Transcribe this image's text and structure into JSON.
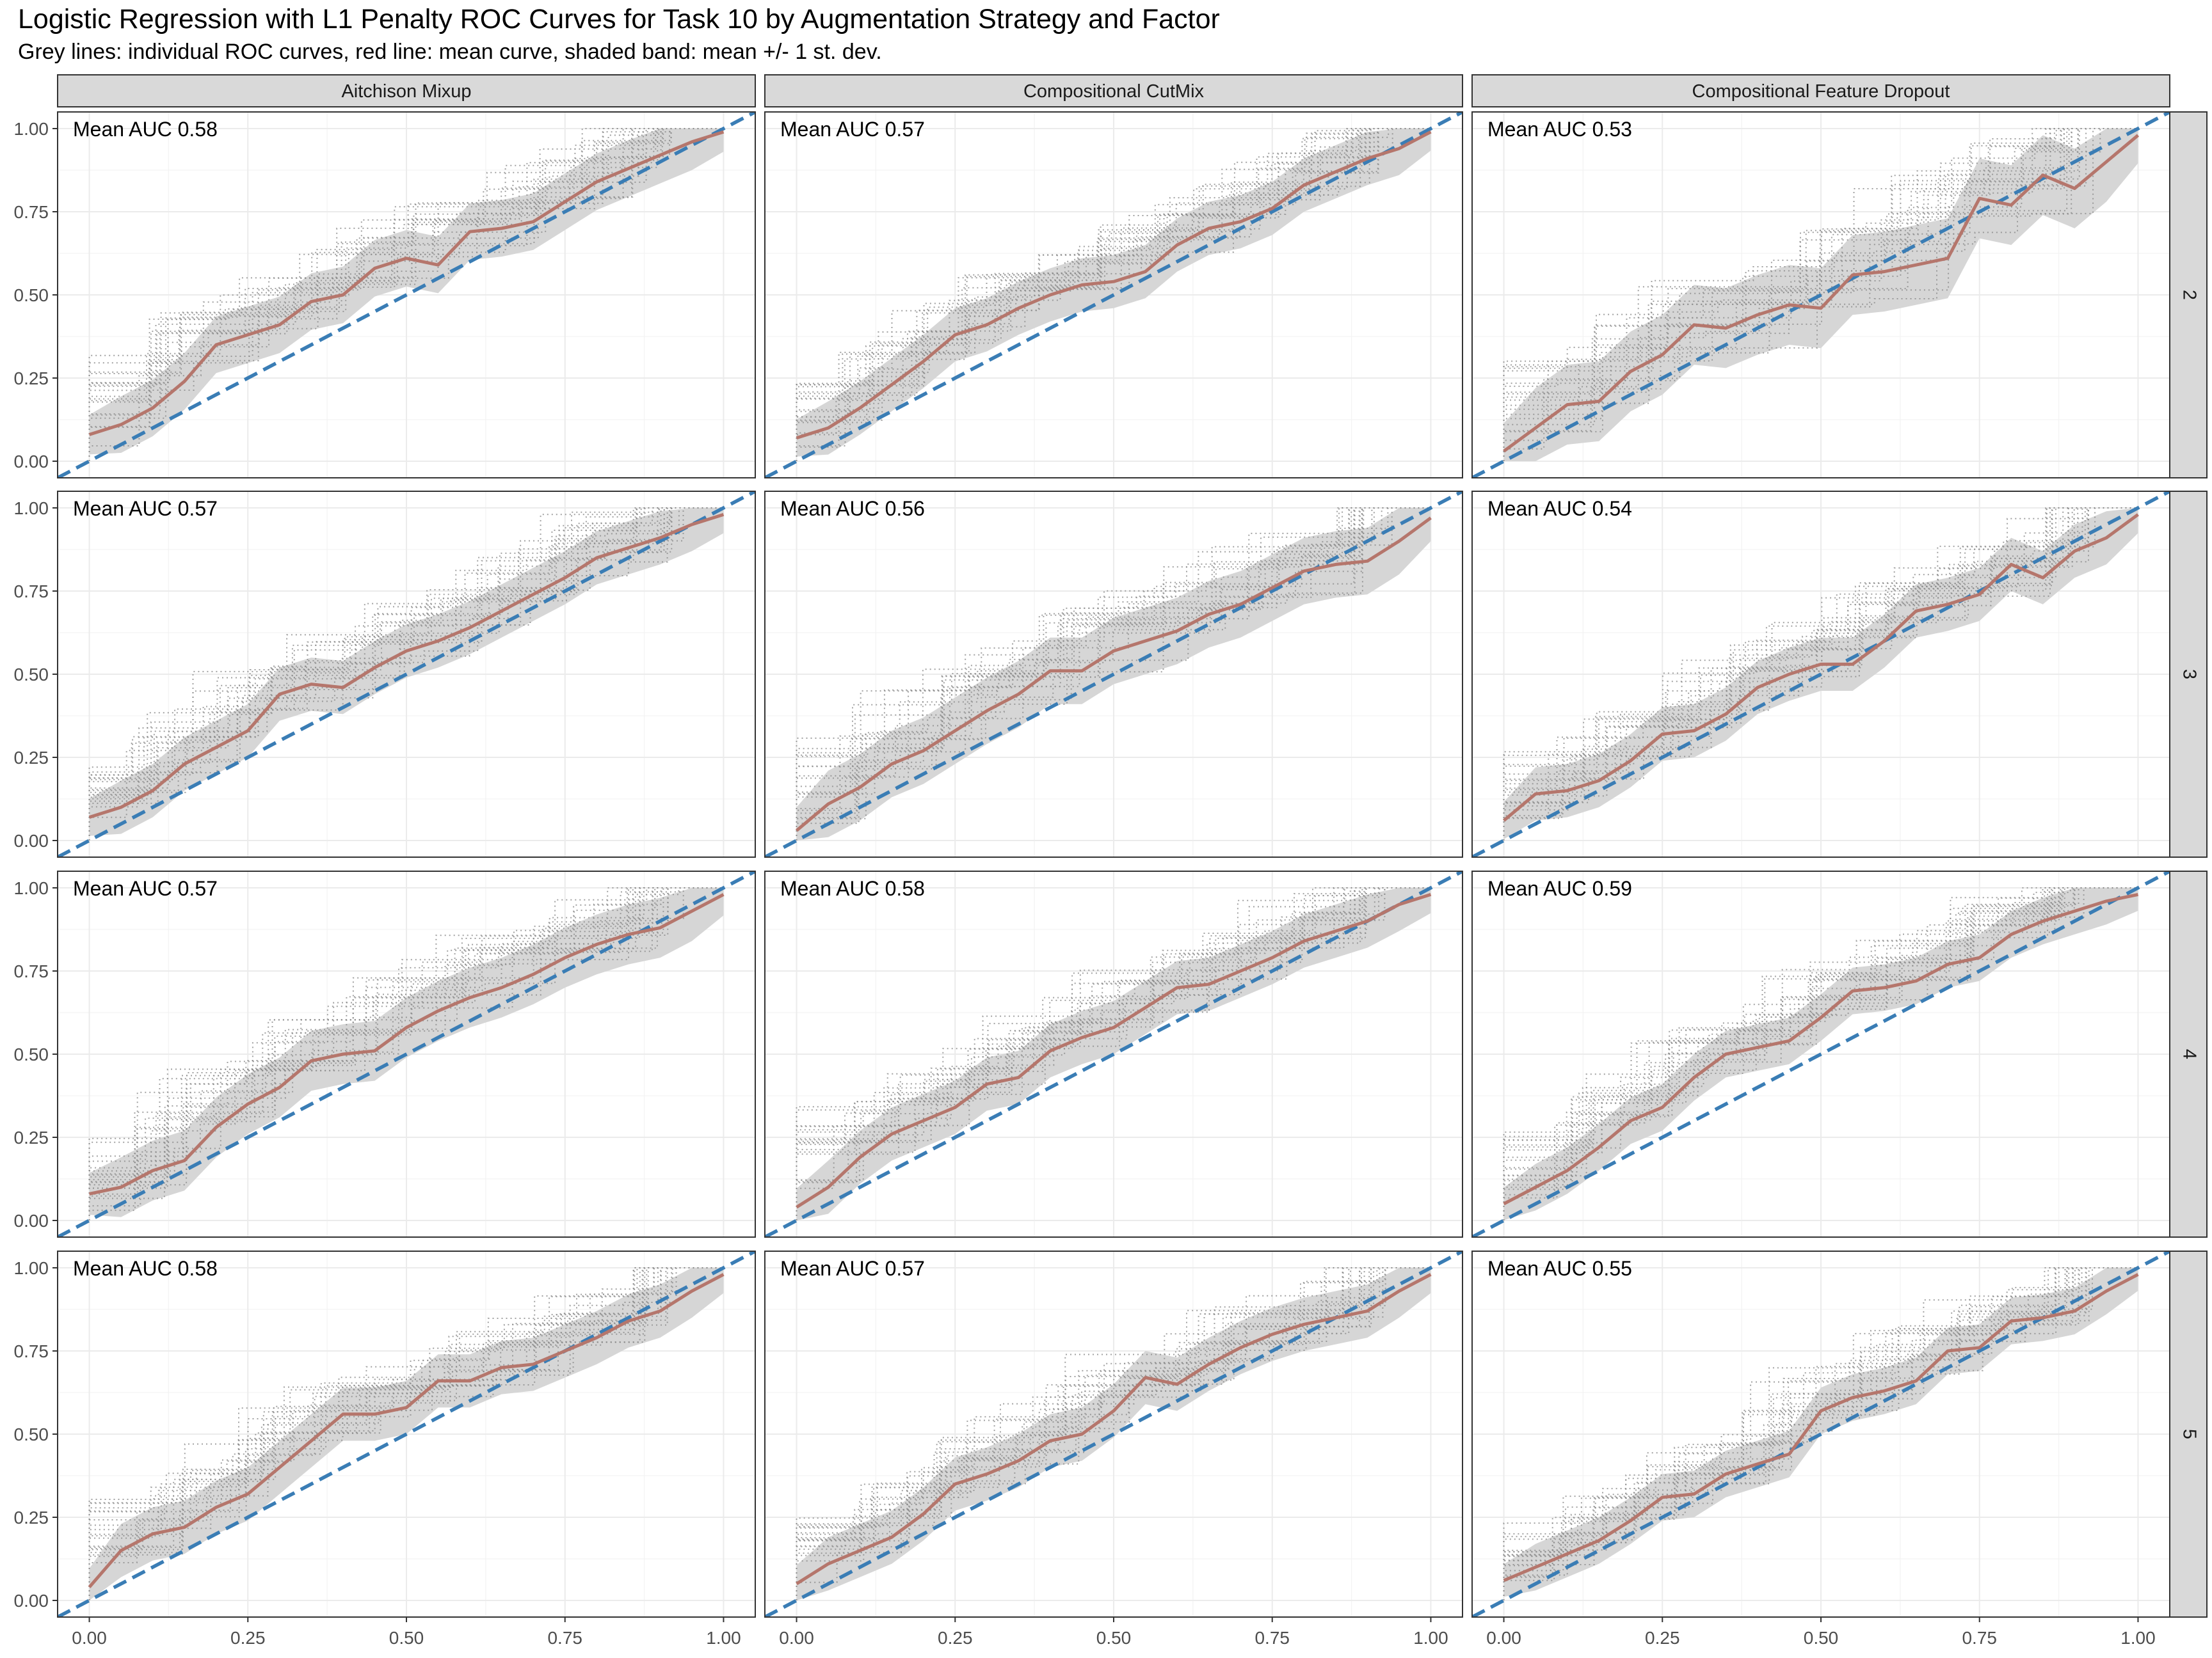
{
  "title": "Logistic Regression with L1 Penalty ROC Curves for Task 10 by Augmentation Strategy and Factor",
  "subtitle": "Grey lines: individual ROC curves, red line: mean curve, shaded band: mean +/- 1 st. dev.",
  "colors": {
    "mean_curve": "#B5766C",
    "diagonal": "#3A7DB5",
    "band": "#D6D6D6",
    "individual": "#8A8A8A",
    "strip_fill": "#D9D9D9",
    "grid": "#EBEBEB"
  },
  "chart_data": {
    "type": "line",
    "facet_columns": [
      "Aitchison Mixup",
      "Compositional CutMix",
      "Compositional Feature Dropout"
    ],
    "facet_rows": [
      "2",
      "3",
      "4",
      "5"
    ],
    "x_ticks": [
      "0.00",
      "0.25",
      "0.50",
      "0.75",
      "1.00"
    ],
    "y_ticks": [
      "0.00",
      "0.25",
      "0.50",
      "0.75",
      "1.00"
    ],
    "xlim": [
      0,
      1
    ],
    "ylim": [
      0,
      1
    ],
    "grid": true,
    "mean_x": [
      0,
      0.05,
      0.1,
      0.15,
      0.2,
      0.25,
      0.3,
      0.35,
      0.4,
      0.45,
      0.5,
      0.55,
      0.6,
      0.65,
      0.7,
      0.75,
      0.8,
      0.85,
      0.9,
      0.95,
      1.0
    ],
    "panels": [
      {
        "row": "2",
        "col": "Aitchison Mixup",
        "label": "Mean AUC 0.58",
        "mean": [
          0.08,
          0.11,
          0.16,
          0.24,
          0.35,
          0.38,
          0.41,
          0.48,
          0.5,
          0.58,
          0.61,
          0.59,
          0.69,
          0.7,
          0.72,
          0.78,
          0.84,
          0.88,
          0.92,
          0.96,
          0.99
        ],
        "sd": 0.085
      },
      {
        "row": "2",
        "col": "Compositional CutMix",
        "label": "Mean AUC 0.57",
        "mean": [
          0.07,
          0.1,
          0.16,
          0.23,
          0.3,
          0.38,
          0.41,
          0.46,
          0.5,
          0.53,
          0.54,
          0.57,
          0.65,
          0.7,
          0.72,
          0.76,
          0.83,
          0.87,
          0.91,
          0.94,
          0.99
        ],
        "sd": 0.08
      },
      {
        "row": "2",
        "col": "Compositional Feature Dropout",
        "label": "Mean AUC 0.53",
        "mean": [
          0.03,
          0.1,
          0.17,
          0.18,
          0.27,
          0.32,
          0.41,
          0.4,
          0.44,
          0.47,
          0.46,
          0.56,
          0.57,
          0.59,
          0.61,
          0.79,
          0.77,
          0.86,
          0.82,
          0.9,
          0.98
        ],
        "sd": 0.12
      },
      {
        "row": "3",
        "col": "Aitchison Mixup",
        "label": "Mean AUC 0.57",
        "mean": [
          0.07,
          0.1,
          0.15,
          0.23,
          0.28,
          0.33,
          0.44,
          0.47,
          0.46,
          0.52,
          0.57,
          0.6,
          0.64,
          0.69,
          0.74,
          0.79,
          0.85,
          0.88,
          0.91,
          0.95,
          0.98
        ],
        "sd": 0.08
      },
      {
        "row": "3",
        "col": "Compositional CutMix",
        "label": "Mean AUC 0.56",
        "mean": [
          0.03,
          0.11,
          0.16,
          0.23,
          0.27,
          0.33,
          0.39,
          0.44,
          0.51,
          0.51,
          0.57,
          0.6,
          0.63,
          0.68,
          0.71,
          0.76,
          0.81,
          0.83,
          0.84,
          0.9,
          0.97
        ],
        "sd": 0.1
      },
      {
        "row": "3",
        "col": "Compositional Feature Dropout",
        "label": "Mean AUC 0.54",
        "mean": [
          0.06,
          0.14,
          0.15,
          0.18,
          0.24,
          0.32,
          0.33,
          0.38,
          0.46,
          0.5,
          0.53,
          0.53,
          0.6,
          0.69,
          0.71,
          0.74,
          0.83,
          0.79,
          0.87,
          0.91,
          0.98
        ],
        "sd": 0.08
      },
      {
        "row": "4",
        "col": "Aitchison Mixup",
        "label": "Mean AUC 0.57",
        "mean": [
          0.08,
          0.1,
          0.15,
          0.18,
          0.28,
          0.35,
          0.4,
          0.48,
          0.5,
          0.51,
          0.58,
          0.63,
          0.67,
          0.7,
          0.74,
          0.79,
          0.83,
          0.86,
          0.88,
          0.93,
          0.98
        ],
        "sd": 0.09
      },
      {
        "row": "4",
        "col": "Compositional CutMix",
        "label": "Mean AUC 0.58",
        "mean": [
          0.04,
          0.1,
          0.19,
          0.26,
          0.3,
          0.34,
          0.41,
          0.43,
          0.51,
          0.55,
          0.58,
          0.64,
          0.7,
          0.71,
          0.75,
          0.79,
          0.84,
          0.87,
          0.9,
          0.95,
          0.98
        ],
        "sd": 0.08
      },
      {
        "row": "4",
        "col": "Compositional Feature Dropout",
        "label": "Mean AUC 0.59",
        "mean": [
          0.05,
          0.1,
          0.15,
          0.22,
          0.3,
          0.34,
          0.43,
          0.5,
          0.52,
          0.54,
          0.61,
          0.69,
          0.7,
          0.72,
          0.77,
          0.79,
          0.86,
          0.9,
          0.93,
          0.96,
          0.98
        ],
        "sd": 0.07
      },
      {
        "row": "5",
        "col": "Aitchison Mixup",
        "label": "Mean AUC 0.58",
        "mean": [
          0.04,
          0.15,
          0.2,
          0.22,
          0.28,
          0.32,
          0.4,
          0.48,
          0.56,
          0.56,
          0.58,
          0.66,
          0.66,
          0.7,
          0.71,
          0.75,
          0.79,
          0.84,
          0.87,
          0.93,
          0.98
        ],
        "sd": 0.08
      },
      {
        "row": "5",
        "col": "Compositional CutMix",
        "label": "Mean AUC 0.57",
        "mean": [
          0.05,
          0.11,
          0.15,
          0.19,
          0.26,
          0.35,
          0.38,
          0.42,
          0.48,
          0.5,
          0.57,
          0.67,
          0.65,
          0.71,
          0.76,
          0.8,
          0.83,
          0.85,
          0.87,
          0.93,
          0.98
        ],
        "sd": 0.08
      },
      {
        "row": "5",
        "col": "Compositional Feature Dropout",
        "label": "Mean AUC 0.55",
        "mean": [
          0.06,
          0.1,
          0.14,
          0.18,
          0.24,
          0.31,
          0.32,
          0.38,
          0.41,
          0.44,
          0.57,
          0.61,
          0.63,
          0.66,
          0.75,
          0.76,
          0.84,
          0.85,
          0.87,
          0.93,
          0.98
        ],
        "sd": 0.07
      }
    ]
  }
}
